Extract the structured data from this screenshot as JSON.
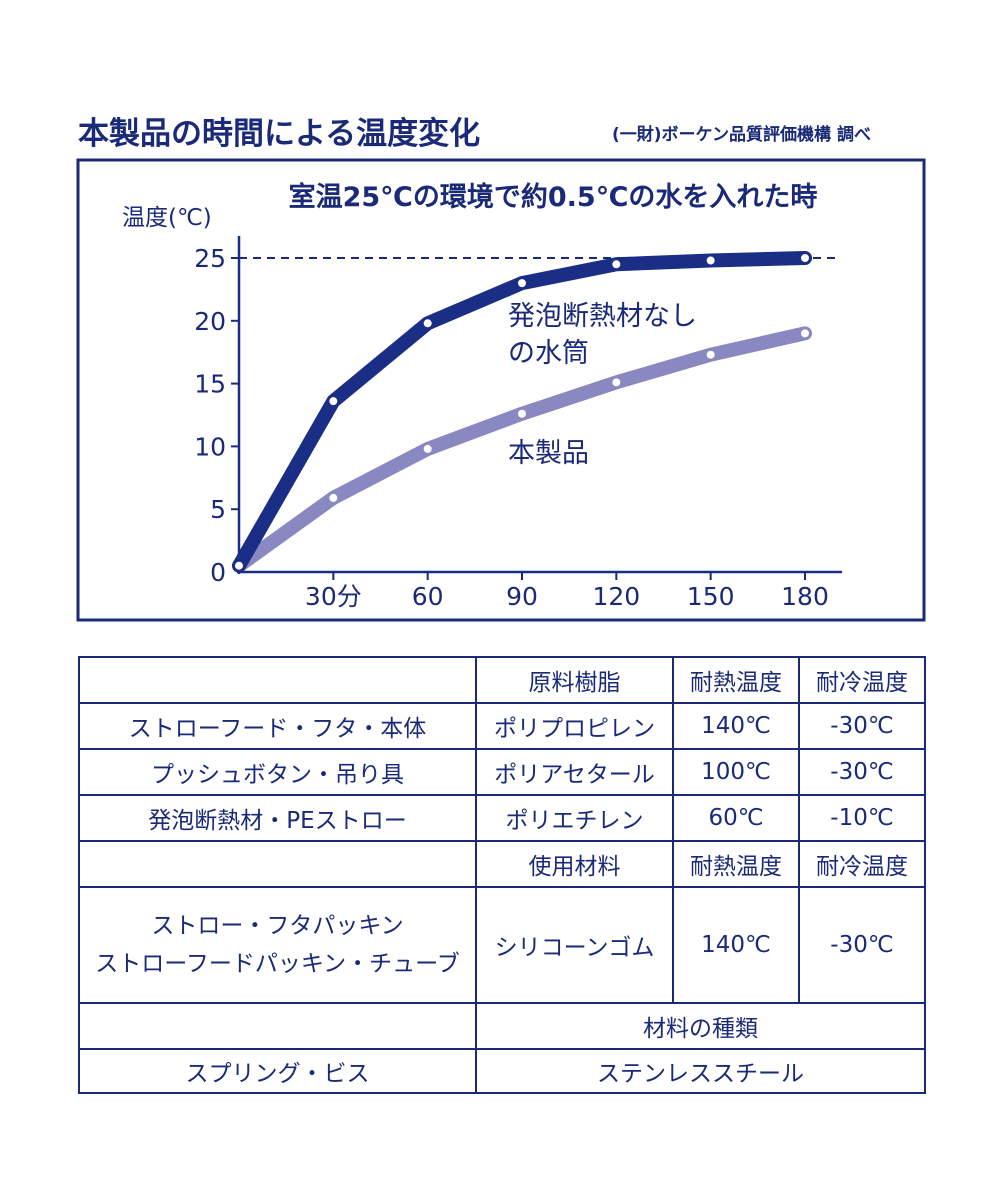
{
  "header": {
    "title": "本製品の時間による温度変化",
    "source": "(一財)ボーケン品質評価機構 調べ"
  },
  "chart_data": {
    "type": "line",
    "title": "室温25℃の環境で約0.5℃の水を入れた時",
    "ylabel": "温度(℃)",
    "ylim": [
      0,
      25
    ],
    "xlim": [
      0,
      180
    ],
    "yticks": [
      "0",
      "5",
      "10",
      "15",
      "20",
      "25"
    ],
    "xticks": [
      {
        "value": 30,
        "label": "30分"
      },
      {
        "value": 60,
        "label": "60"
      },
      {
        "value": 90,
        "label": "90"
      },
      {
        "value": 120,
        "label": "120"
      },
      {
        "value": 150,
        "label": "150"
      },
      {
        "value": 180,
        "label": "180"
      }
    ],
    "reference_line": {
      "y": 25,
      "style": "dashed"
    },
    "grid": false,
    "series": [
      {
        "name": "発泡断熱材なしの水筒",
        "label_lines": [
          "発泡断熱材なし",
          "の水筒"
        ],
        "color": "#1b2e85",
        "x": [
          0,
          30,
          60,
          90,
          120,
          150,
          180
        ],
        "values": [
          0.5,
          13.6,
          19.8,
          23.0,
          24.5,
          24.8,
          25.0
        ]
      },
      {
        "name": "本製品",
        "label_lines": [
          "本製品"
        ],
        "color": "#8a88c0",
        "x": [
          0,
          30,
          60,
          90,
          120,
          150,
          180
        ],
        "values": [
          0.5,
          5.9,
          9.8,
          12.6,
          15.1,
          17.3,
          19.0
        ]
      }
    ]
  },
  "table": {
    "header1": {
      "blank": "",
      "col1": "原料樹脂",
      "col2": "耐熱温度",
      "col3": "耐冷温度"
    },
    "rows1": [
      {
        "part": "ストローフード・フタ・本体",
        "material": "ポリプロピレン",
        "heat": "140℃",
        "cold": "-30℃"
      },
      {
        "part": "プッシュボタン・吊り具",
        "material": "ポリアセタール",
        "heat": "100℃",
        "cold": "-30℃"
      },
      {
        "part": "発泡断熱材・PEストロー",
        "material": "ポリエチレン",
        "heat": "60℃",
        "cold": "-10℃"
      }
    ],
    "header2": {
      "blank": "",
      "col1": "使用材料",
      "col2": "耐熱温度",
      "col3": "耐冷温度"
    },
    "row2": {
      "part_line1": "ストロー・フタパッキン",
      "part_line2": "ストローフードパッキン・チューブ",
      "material": "シリコーンゴム",
      "heat": "140℃",
      "cold": "-30℃"
    },
    "header3": {
      "blank": "",
      "col1": "材料の種類"
    },
    "row3": {
      "part": "スプリング・ビス",
      "material": "ステンレススチール"
    }
  },
  "colors": {
    "primary": "#1a2a78",
    "series_dark": "#1b2e85",
    "series_light": "#8a88c0"
  }
}
